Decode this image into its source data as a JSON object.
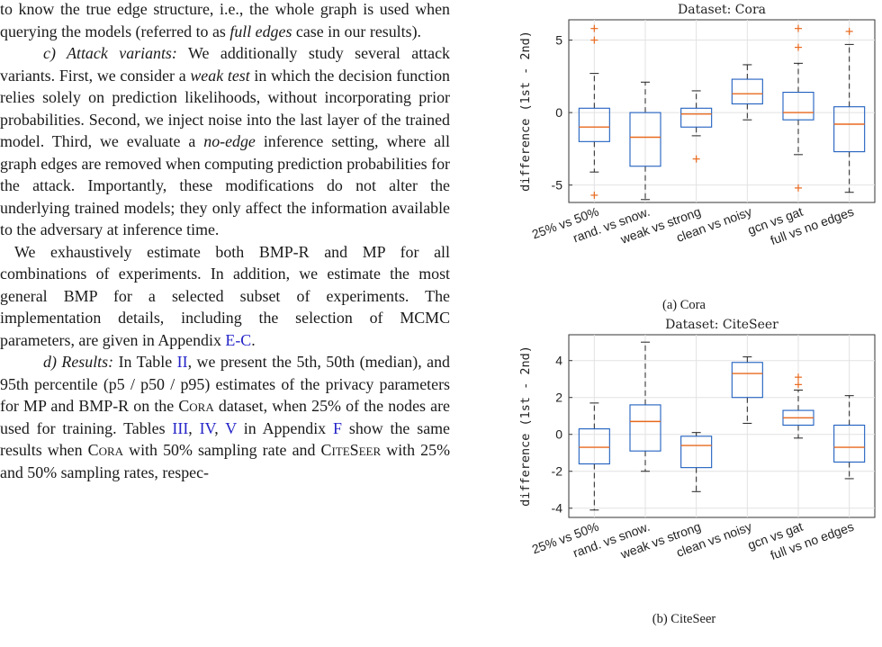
{
  "body_text": {
    "p1": {
      "a": "to know the true edge structure, i.e., the whole graph is used when querying the models (referred to as ",
      "b": "full edges",
      "c": " case in our results)."
    },
    "p2": {
      "heading": "c) Attack variants:",
      "a": " We additionally study several attack variants. First, we consider a ",
      "b": "weak test",
      "c": " in which the decision function relies solely on prediction likelihoods, without incorporating prior probabilities. Second, we inject noise into the last layer of the trained model. Third, we evaluate a ",
      "d": "no-edge",
      "e": " inference setting, where all graph edges are removed when computing prediction probabilities for the attack. Importantly, these modifications do not alter the underlying trained models; they only affect the information available to the adversary at inference time."
    },
    "p3": {
      "a": "We exhaustively estimate both BMP-R and MP for all combinations of experiments. In addition, we estimate the most general BMP for a selected subset of experiments. The implementation details, including the selection of MCMC parameters, are given in Appendix ",
      "link": "E-C",
      "b": "."
    },
    "p4": {
      "heading": "d) Results:",
      "a": " In Table ",
      "link1": "II",
      "b": ", we present the 5th, 50th (median), and 95th percentile (p5 / p50 / p95) estimates of the privacy parameters for MP and BMP-R on the ",
      "cora": "Cora",
      "c": " dataset, when 25% of the nodes are used for training. Tables ",
      "link2": "III",
      "d": ", ",
      "link3": "IV",
      "e": ", ",
      "link4": "V",
      "f": " in Appendix ",
      "link5": "F",
      "g": " show the same results when ",
      "cora2": "Cora",
      "h": " with 50% sampling rate and ",
      "citeseer": "CiteSeer",
      "i": " with 25% and 50% sampling rates, respec-"
    }
  },
  "figures": {
    "top_caption": "(a) Cora",
    "bottom_caption": "(b) CiteSeer"
  },
  "chart_data": [
    {
      "type": "boxplot",
      "title": "Dataset: Cora",
      "xlabel": "",
      "ylabel": "difference (1st - 2nd)",
      "categories": [
        "25% vs 50%",
        "rand. vs snow.",
        "weak vs strong",
        "clean vs noisy",
        "gcn vs gat",
        "full vs no edges"
      ],
      "ylim": [
        -6.2,
        6.4
      ],
      "yticks": [
        -5,
        0,
        5
      ],
      "grid": true,
      "box_color": "#1f5fbf",
      "median_color": "#e8691e",
      "outlier_color": "#e8691e",
      "boxes": [
        {
          "whislo": -4.1,
          "q1": -2.0,
          "med": -1.0,
          "q3": 0.3,
          "whishi": 2.7,
          "outliers": [
            5.0,
            5.8,
            -5.7
          ]
        },
        {
          "whislo": -6.0,
          "q1": -3.7,
          "med": -1.7,
          "q3": 0.0,
          "whishi": 2.1,
          "outliers": []
        },
        {
          "whislo": -1.6,
          "q1": -1.0,
          "med": -0.1,
          "q3": 0.3,
          "whishi": 1.5,
          "outliers": [
            -3.2
          ]
        },
        {
          "whislo": -0.5,
          "q1": 0.6,
          "med": 1.3,
          "q3": 2.3,
          "whishi": 3.3,
          "outliers": []
        },
        {
          "whislo": -2.9,
          "q1": -0.5,
          "med": 0.0,
          "q3": 1.4,
          "whishi": 3.4,
          "outliers": [
            4.5,
            5.8,
            -5.2
          ]
        },
        {
          "whislo": -5.5,
          "q1": -2.7,
          "med": -0.8,
          "q3": 0.4,
          "whishi": 4.7,
          "outliers": [
            5.6
          ]
        }
      ]
    },
    {
      "type": "boxplot",
      "title": "Dataset: CiteSeer",
      "xlabel": "",
      "ylabel": "difference (1st - 2nd)",
      "categories": [
        "25% vs 50%",
        "rand. vs snow.",
        "weak vs strong",
        "clean vs noisy",
        "gcn vs gat",
        "full vs no edges"
      ],
      "ylim": [
        -4.5,
        5.4
      ],
      "yticks": [
        -4,
        -2,
        0,
        2,
        4
      ],
      "grid": true,
      "box_color": "#1f5fbf",
      "median_color": "#e8691e",
      "outlier_color": "#e8691e",
      "boxes": [
        {
          "whislo": -4.1,
          "q1": -1.6,
          "med": -0.7,
          "q3": 0.3,
          "whishi": 1.7,
          "outliers": []
        },
        {
          "whislo": -2.0,
          "q1": -0.9,
          "med": 0.7,
          "q3": 1.6,
          "whishi": 5.0,
          "outliers": []
        },
        {
          "whislo": -3.1,
          "q1": -1.8,
          "med": -0.6,
          "q3": -0.1,
          "whishi": 0.1,
          "outliers": []
        },
        {
          "whislo": 0.6,
          "q1": 2.0,
          "med": 3.3,
          "q3": 3.9,
          "whishi": 4.2,
          "outliers": []
        },
        {
          "whislo": -0.2,
          "q1": 0.5,
          "med": 0.9,
          "q3": 1.3,
          "whishi": 2.4,
          "outliers": [
            2.7,
            3.1
          ]
        },
        {
          "whislo": -2.4,
          "q1": -1.5,
          "med": -0.7,
          "q3": 0.5,
          "whishi": 2.1,
          "outliers": []
        }
      ]
    }
  ]
}
